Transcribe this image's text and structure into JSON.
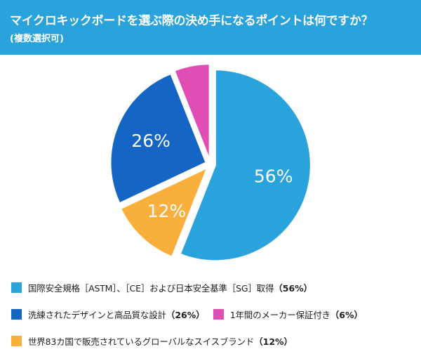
{
  "header": {
    "title": "マイクロキックボードを選ぶ際の決め手になるポイントは何ですか？",
    "subtitle": "(複数選択可)"
  },
  "colors": {
    "header_bg": "#2aa3dd",
    "header_text": "#ffffff"
  },
  "chart_data": {
    "type": "pie",
    "title": "マイクロキックボードを選ぶ際の決め手になるポイントは何ですか？",
    "subtitle": "(複数選択可)",
    "legend_position": "bottom",
    "slices": [
      {
        "name": "国際安全規格［ASTM］、［CE］および日本安全基準［SG］取得",
        "value": 56,
        "label": "56%",
        "legend_pct": "（56%）",
        "color": "#2aa3dd"
      },
      {
        "name": "世界83カ国で販売されているグローバルなスイスブランド",
        "value": 12,
        "label": "12%",
        "legend_pct": "（12%）",
        "color": "#f9af3c"
      },
      {
        "name": "洗練されたデザインと高品質な設計",
        "value": 26,
        "label": "26%",
        "legend_pct": "（26%）",
        "color": "#1565c4"
      },
      {
        "name": "1年間のメーカー保証付き",
        "value": 6,
        "label": "",
        "legend_pct": "（6%）",
        "color": "#e04eb4"
      }
    ]
  }
}
